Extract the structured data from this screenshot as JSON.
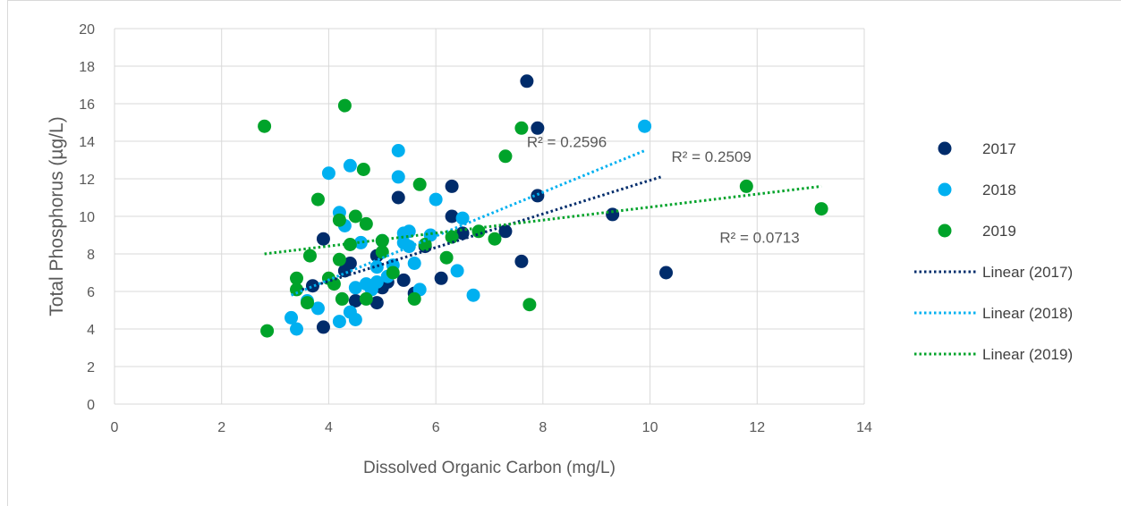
{
  "chart_data": {
    "type": "scatter",
    "xlabel": "Dissolved Organic Carbon (mg/L)",
    "ylabel": "Total Phosphorus (µg/L)",
    "xlim": [
      0,
      14
    ],
    "ylim": [
      0,
      20
    ],
    "xticks": [
      0,
      2,
      4,
      6,
      8,
      10,
      12,
      14
    ],
    "yticks": [
      0,
      2,
      4,
      6,
      8,
      10,
      12,
      14,
      16,
      18,
      20
    ],
    "grid": true,
    "legend_position": "right",
    "series": [
      {
        "name": "2017",
        "color": "#002c6b",
        "points": [
          [
            3.7,
            6.3
          ],
          [
            3.9,
            4.1
          ],
          [
            3.9,
            8.8
          ],
          [
            4.3,
            7.1
          ],
          [
            4.4,
            7.5
          ],
          [
            4.5,
            5.5
          ],
          [
            4.9,
            7.9
          ],
          [
            4.9,
            5.4
          ],
          [
            5.0,
            6.2
          ],
          [
            5.1,
            6.5
          ],
          [
            5.3,
            11.0
          ],
          [
            5.4,
            6.6
          ],
          [
            5.6,
            5.9
          ],
          [
            5.8,
            8.4
          ],
          [
            6.1,
            6.7
          ],
          [
            6.3,
            11.6
          ],
          [
            6.3,
            10.0
          ],
          [
            6.5,
            9.1
          ],
          [
            7.3,
            9.2
          ],
          [
            7.6,
            7.6
          ],
          [
            7.7,
            17.2
          ],
          [
            7.9,
            14.7
          ],
          [
            7.9,
            11.1
          ],
          [
            9.3,
            10.1
          ],
          [
            10.3,
            7.0
          ]
        ]
      },
      {
        "name": "2018",
        "color": "#00b0f0",
        "points": [
          [
            3.3,
            4.6
          ],
          [
            3.4,
            4.0
          ],
          [
            3.6,
            5.5
          ],
          [
            3.8,
            5.1
          ],
          [
            4.0,
            12.3
          ],
          [
            4.2,
            10.2
          ],
          [
            4.2,
            4.4
          ],
          [
            4.3,
            9.5
          ],
          [
            4.4,
            12.7
          ],
          [
            4.4,
            4.9
          ],
          [
            4.5,
            4.5
          ],
          [
            4.5,
            6.2
          ],
          [
            4.6,
            8.6
          ],
          [
            4.7,
            6.4
          ],
          [
            4.8,
            6.1
          ],
          [
            4.9,
            7.3
          ],
          [
            4.9,
            6.5
          ],
          [
            5.0,
            8.7
          ],
          [
            5.1,
            6.8
          ],
          [
            5.2,
            7.4
          ],
          [
            5.3,
            13.5
          ],
          [
            5.3,
            12.1
          ],
          [
            5.4,
            9.1
          ],
          [
            5.4,
            8.6
          ],
          [
            5.5,
            9.2
          ],
          [
            5.5,
            8.4
          ],
          [
            5.6,
            7.5
          ],
          [
            5.7,
            6.1
          ],
          [
            5.9,
            9.0
          ],
          [
            6.0,
            10.9
          ],
          [
            6.4,
            7.1
          ],
          [
            6.5,
            9.9
          ],
          [
            6.7,
            5.8
          ],
          [
            9.9,
            14.8
          ]
        ]
      },
      {
        "name": "2019",
        "color": "#00a32a",
        "points": [
          [
            2.8,
            14.8
          ],
          [
            2.85,
            3.9
          ],
          [
            3.4,
            6.7
          ],
          [
            3.4,
            6.1
          ],
          [
            3.6,
            5.4
          ],
          [
            3.65,
            7.9
          ],
          [
            3.8,
            10.9
          ],
          [
            4.0,
            6.7
          ],
          [
            4.1,
            6.4
          ],
          [
            4.2,
            9.8
          ],
          [
            4.2,
            7.7
          ],
          [
            4.25,
            5.6
          ],
          [
            4.3,
            15.9
          ],
          [
            4.4,
            8.5
          ],
          [
            4.5,
            10.0
          ],
          [
            4.65,
            12.5
          ],
          [
            4.7,
            9.6
          ],
          [
            4.7,
            5.6
          ],
          [
            5.0,
            8.7
          ],
          [
            5.0,
            8.1
          ],
          [
            5.2,
            7.0
          ],
          [
            5.6,
            5.6
          ],
          [
            5.7,
            11.7
          ],
          [
            5.8,
            8.5
          ],
          [
            6.2,
            7.8
          ],
          [
            6.3,
            8.9
          ],
          [
            6.8,
            9.2
          ],
          [
            7.1,
            8.8
          ],
          [
            7.3,
            13.2
          ],
          [
            7.6,
            14.7
          ],
          [
            7.75,
            5.3
          ],
          [
            11.8,
            11.6
          ],
          [
            13.2,
            10.4
          ]
        ]
      }
    ],
    "trendlines": [
      {
        "name": "Linear (2017)",
        "color": "#002c6b",
        "x": [
          3.5,
          10.2
        ],
        "y": [
          6.1,
          12.1
        ],
        "r2": "R² = 0.2509",
        "label_at": [
          10.4,
          12.9
        ]
      },
      {
        "name": "Linear (2018)",
        "color": "#00b0f0",
        "x": [
          3.3,
          9.9
        ],
        "y": [
          5.8,
          13.5
        ],
        "r2": "R² = 0.2596",
        "label_at": [
          7.7,
          13.7
        ]
      },
      {
        "name": "Linear (2019)",
        "color": "#00a32a",
        "x": [
          2.8,
          13.2
        ],
        "y": [
          8.0,
          11.6
        ],
        "r2": "R² = 0.0713",
        "label_at": [
          11.3,
          8.6
        ]
      }
    ]
  }
}
